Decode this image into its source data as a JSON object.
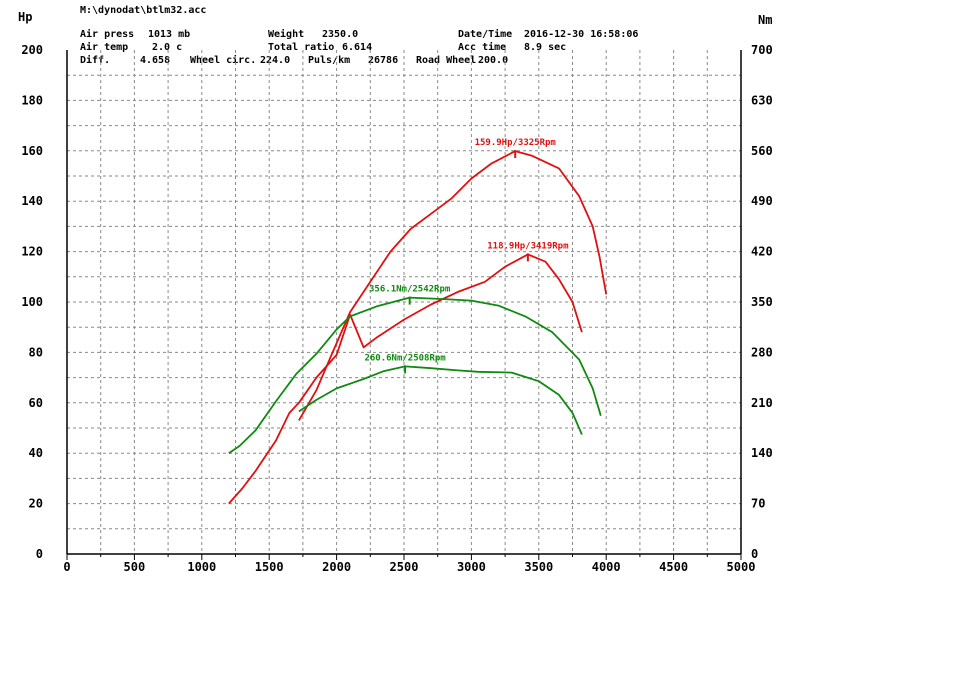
{
  "header": {
    "file": "M:\\dynodat\\btlm32.acc",
    "air_press_label": "Air press",
    "air_press_value": "1013 mb",
    "air_temp_label": "Air temp",
    "air_temp_value": "2.0 c",
    "diff_label": "Diff.",
    "diff_value": "4.658",
    "weight_label": "Weight",
    "weight_value": "2350.0",
    "total_ratio_label": "Total ratio",
    "total_ratio_value": "6.614",
    "wheel_circ_label": "Wheel circ.",
    "wheel_circ_value": "224.0",
    "puls_label": "Puls/km",
    "puls_value": "26786",
    "road_wheel_label": "Road Wheel",
    "road_wheel_value": "200.0",
    "datetime_label": "Date/Time",
    "datetime_value": "2016-12-30 16:58:06",
    "acc_time_label": "Acc time",
    "acc_time_value": "8.9 sec"
  },
  "colors": {
    "power": "#e01010",
    "torque": "#108a10",
    "grid": "#8a8a8a",
    "axis": "#000000"
  },
  "chart_data": {
    "type": "line",
    "grid": true,
    "left_axis": {
      "unit": "Hp",
      "range": [
        0,
        200
      ],
      "ticks": [
        0,
        20,
        40,
        60,
        80,
        100,
        120,
        140,
        160,
        180,
        200
      ]
    },
    "right_axis": {
      "unit": "Nm",
      "range": [
        0,
        700
      ],
      "ticks": [
        0,
        70,
        140,
        210,
        280,
        350,
        420,
        490,
        560,
        630,
        700
      ]
    },
    "x_axis": {
      "unit": "",
      "range": [
        0,
        5000
      ],
      "ticks": [
        0,
        500,
        1000,
        1500,
        2000,
        2500,
        3000,
        3500,
        4000,
        4500,
        5000
      ]
    },
    "series": [
      {
        "id": "power_high",
        "kind": "power",
        "axis": "left",
        "annotation": "159.9Hp/3325Rpm",
        "peak": {
          "x": 3325,
          "y": 159.9
        },
        "points": [
          [
            1720,
            53
          ],
          [
            1850,
            65
          ],
          [
            1970,
            80
          ],
          [
            2100,
            96
          ],
          [
            2250,
            108
          ],
          [
            2400,
            120
          ],
          [
            2550,
            129
          ],
          [
            2700,
            135
          ],
          [
            2850,
            141
          ],
          [
            3000,
            149
          ],
          [
            3150,
            155
          ],
          [
            3325,
            159.9
          ],
          [
            3450,
            158
          ],
          [
            3650,
            153
          ],
          [
            3800,
            142
          ],
          [
            3900,
            130
          ],
          [
            3950,
            118
          ],
          [
            4000,
            103
          ]
        ]
      },
      {
        "id": "power_low",
        "kind": "power",
        "axis": "left",
        "annotation": "118.9Hp/3419Rpm",
        "peak": {
          "x": 3419,
          "y": 118.9
        },
        "points": [
          [
            1200,
            20
          ],
          [
            1300,
            26
          ],
          [
            1400,
            33
          ],
          [
            1550,
            45
          ],
          [
            1650,
            56
          ],
          [
            1720,
            60
          ],
          [
            1850,
            70
          ],
          [
            2000,
            79
          ],
          [
            2100,
            95
          ],
          [
            2200,
            82
          ],
          [
            2300,
            86
          ],
          [
            2500,
            93
          ],
          [
            2700,
            99
          ],
          [
            2900,
            104
          ],
          [
            3100,
            108
          ],
          [
            3250,
            114
          ],
          [
            3419,
            118.9
          ],
          [
            3550,
            116
          ],
          [
            3650,
            109
          ],
          [
            3750,
            100
          ],
          [
            3820,
            88
          ]
        ]
      },
      {
        "id": "torque_high",
        "kind": "torque",
        "axis": "right",
        "annotation": "356.1Nm/2542Rpm",
        "peak": {
          "x": 2542,
          "y": 356.1
        },
        "points": [
          [
            1200,
            140
          ],
          [
            1280,
            150
          ],
          [
            1400,
            172
          ],
          [
            1550,
            212
          ],
          [
            1700,
            250
          ],
          [
            1850,
            278
          ],
          [
            2000,
            312
          ],
          [
            2100,
            330
          ],
          [
            2300,
            344
          ],
          [
            2542,
            356.1
          ],
          [
            2800,
            354
          ],
          [
            3000,
            352
          ],
          [
            3200,
            345
          ],
          [
            3400,
            330
          ],
          [
            3600,
            308
          ],
          [
            3800,
            270
          ],
          [
            3900,
            230
          ],
          [
            3960,
            192
          ]
        ]
      },
      {
        "id": "torque_low",
        "kind": "torque",
        "axis": "right",
        "annotation": "260.6Nm/2508Rpm",
        "peak": {
          "x": 2508,
          "y": 260.6
        },
        "points": [
          [
            1720,
            198
          ],
          [
            1850,
            214
          ],
          [
            2000,
            230
          ],
          [
            2200,
            243
          ],
          [
            2350,
            254
          ],
          [
            2508,
            260.6
          ],
          [
            2700,
            258
          ],
          [
            2900,
            255
          ],
          [
            3050,
            253
          ],
          [
            3300,
            252
          ],
          [
            3500,
            240
          ],
          [
            3650,
            221
          ],
          [
            3750,
            196
          ],
          [
            3820,
            166
          ]
        ]
      }
    ]
  }
}
